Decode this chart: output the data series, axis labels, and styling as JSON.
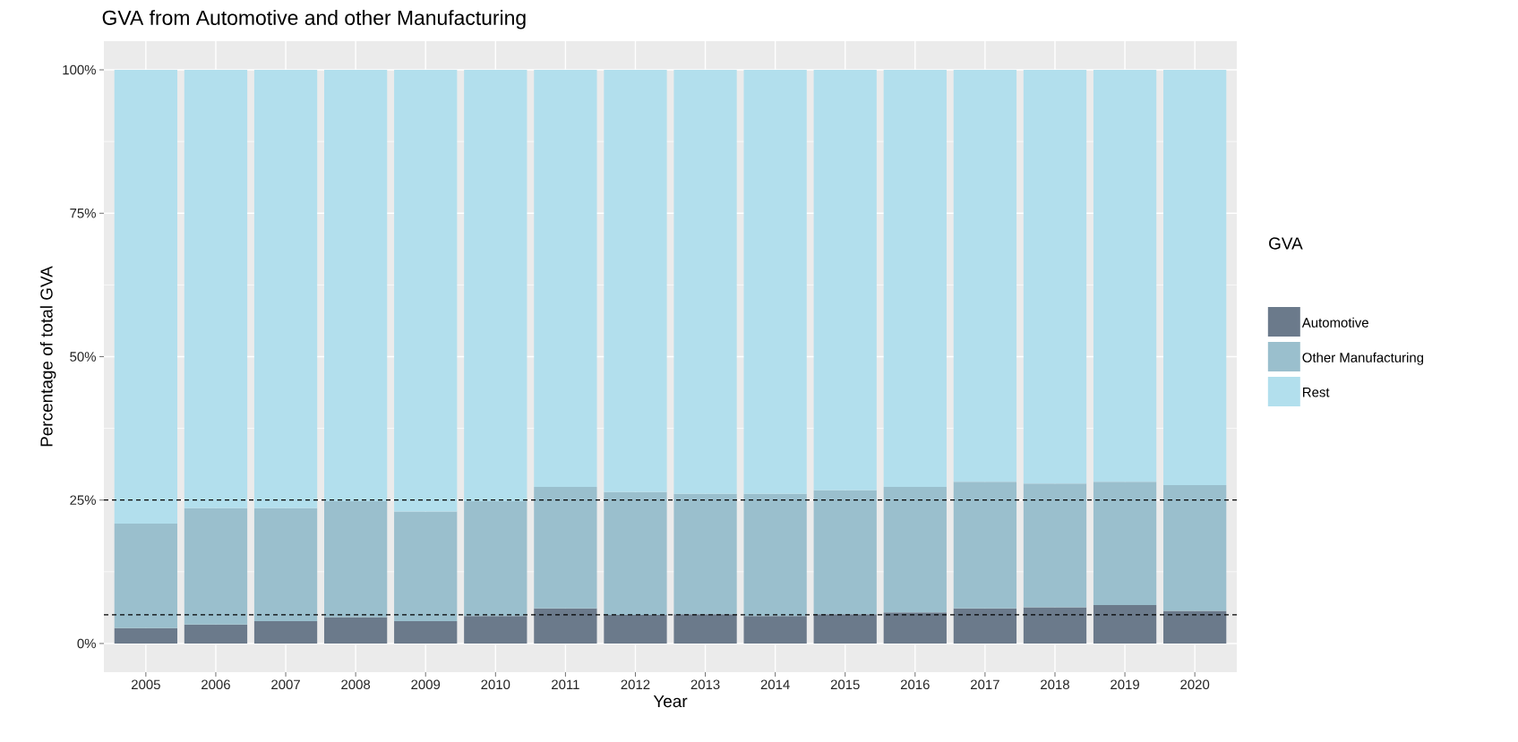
{
  "chart_data": {
    "type": "bar",
    "stacked": true,
    "title": "GVA from Automotive and other Manufacturing",
    "xlabel": "Year",
    "ylabel": "Percentage of total GVA",
    "legend_title": "GVA",
    "categories": [
      "2005",
      "2006",
      "2007",
      "2008",
      "2009",
      "2010",
      "2011",
      "2012",
      "2013",
      "2014",
      "2015",
      "2016",
      "2017",
      "2018",
      "2019",
      "2020"
    ],
    "series": [
      {
        "name": "Automotive",
        "color": "#6b7a8b",
        "values": [
          2.7,
          3.3,
          3.9,
          4.6,
          3.9,
          4.8,
          6.1,
          5.0,
          5.1,
          4.8,
          5.1,
          5.4,
          6.1,
          6.3,
          6.7,
          5.7
        ]
      },
      {
        "name": "Other Manufacturing",
        "color": "#9abfcd",
        "values": [
          18.2,
          20.3,
          19.7,
          20.2,
          19.1,
          20.0,
          21.2,
          21.4,
          21.0,
          21.3,
          21.6,
          21.9,
          22.1,
          21.6,
          21.5,
          21.9
        ]
      },
      {
        "name": "Rest",
        "color": "#b2dfed",
        "values": [
          79.1,
          76.4,
          76.4,
          75.2,
          77.0,
          75.2,
          72.7,
          73.6,
          73.9,
          73.9,
          73.3,
          72.7,
          71.8,
          72.1,
          71.8,
          72.4
        ]
      }
    ],
    "ylim": [
      -5,
      105
    ],
    "yticks": [
      {
        "value": 0,
        "label": "0%"
      },
      {
        "value": 25,
        "label": "25%"
      },
      {
        "value": 50,
        "label": "50%"
      },
      {
        "value": 75,
        "label": "75%"
      },
      {
        "value": 100,
        "label": "100%"
      }
    ],
    "ref_lines": [
      {
        "axis": "y",
        "value": 25,
        "color": "#000000",
        "line_style": "dashed"
      },
      {
        "axis": "y",
        "value": 5,
        "color": "#000000",
        "line_style": "dashed"
      }
    ],
    "grid": true,
    "legend": "right"
  }
}
